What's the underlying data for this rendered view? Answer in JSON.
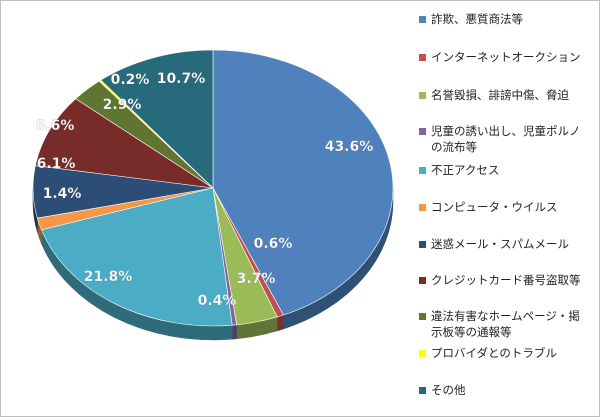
{
  "chart_data": {
    "type": "pie",
    "title": "",
    "legend_position": "right",
    "categories": [
      "詐欺、悪質商法等",
      "インターネットオークション",
      "名誉毀損、誹謗中傷、脅迫",
      "児童の誘い出し、児童ポルノの流布等",
      "不正アクセス",
      "コンピュータ・ウイルス",
      "迷惑メール・スパムメール",
      "クレジットカード番号盗取等",
      "違法有害なホームページ・掲示板等の通報等",
      "プロバイダとのトラブル",
      "その他"
    ],
    "values": [
      43.6,
      0.6,
      3.7,
      0.4,
      21.8,
      1.4,
      6.1,
      8.6,
      2.9,
      0.2,
      10.7
    ],
    "labels": [
      "43.6%",
      "0.6%",
      "3.7%",
      "0.4%",
      "21.8%",
      "1.4%",
      "6.1%",
      "8.6%",
      "2.9%",
      "0.2%",
      "10.7%"
    ],
    "colors": [
      "#4F81BD",
      "#C0504D",
      "#9BBB59",
      "#8064A2",
      "#4BACC6",
      "#F79646",
      "#2C4D75",
      "#772C2A",
      "#5F7530",
      "#FFFF00",
      "#276A7C"
    ]
  }
}
